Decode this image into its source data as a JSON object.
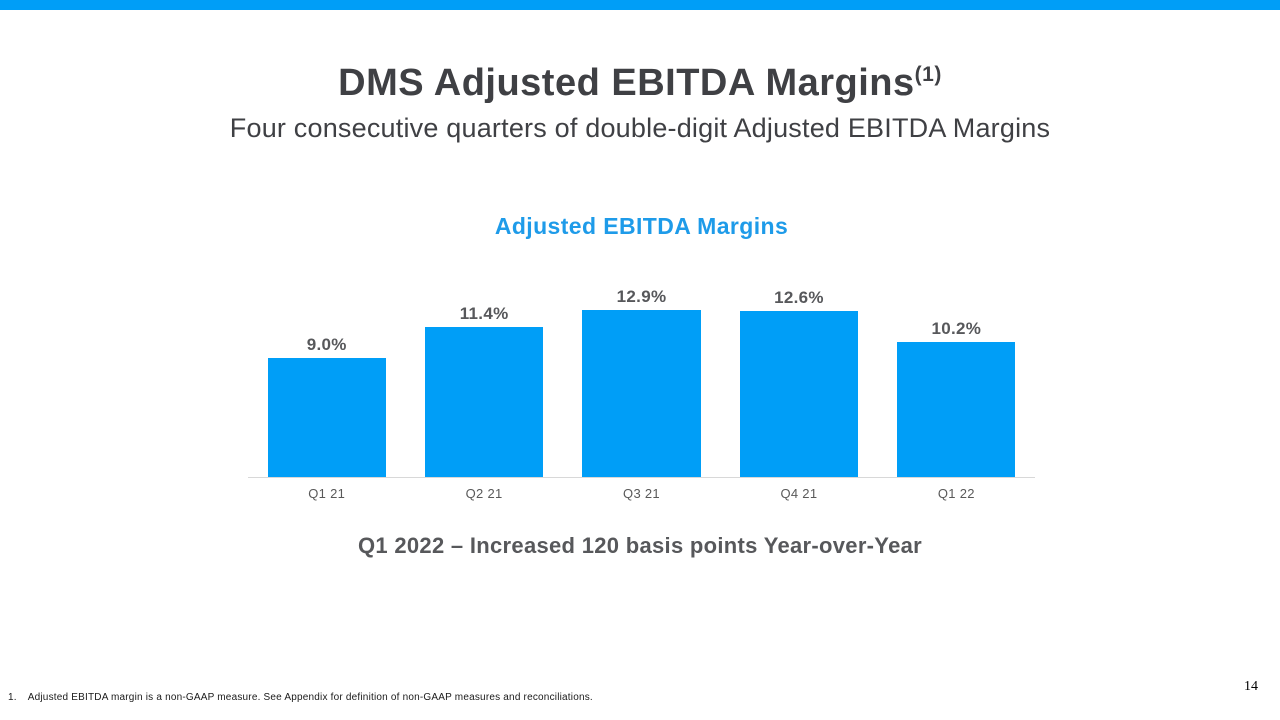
{
  "slide": {
    "title": "DMS Adjusted EBITDA Margins",
    "title_superscript": "(1)",
    "subtitle": "Four consecutive quarters of double-digit Adjusted EBITDA Margins",
    "callout": "Q1 2022 – Increased 120 basis points Year-over-Year",
    "footnote_marker": "1.",
    "footnote_text": "Adjusted EBITDA margin is a non-GAAP measure.  See Appendix for definition of non-GAAP measures and reconciliations.",
    "page_number": "14"
  },
  "colors": {
    "accent_blue": "#009EF7",
    "chart_title_blue": "#1E9BE9",
    "title_text": "#3F4044",
    "body_text_gray": "#57585B",
    "axis_line_gray": "#D8D8D8",
    "axis_label_gray": "#595959"
  },
  "chart_data": {
    "type": "bar",
    "title": "Adjusted EBITDA Margins",
    "categories": [
      "Q1 21",
      "Q2 21",
      "Q3 21",
      "Q4 21",
      "Q1 22"
    ],
    "values": [
      9.0,
      11.4,
      12.9,
      12.6,
      10.2
    ],
    "value_labels": [
      "9.0%",
      "11.4%",
      "12.9%",
      "12.6%",
      "10.2%"
    ],
    "xlabel": "",
    "ylabel": "",
    "ylim": [
      0,
      14.4
    ],
    "grid": false,
    "legend": false,
    "bar_color": "#009EF7",
    "data_label_position": "above-bar"
  }
}
